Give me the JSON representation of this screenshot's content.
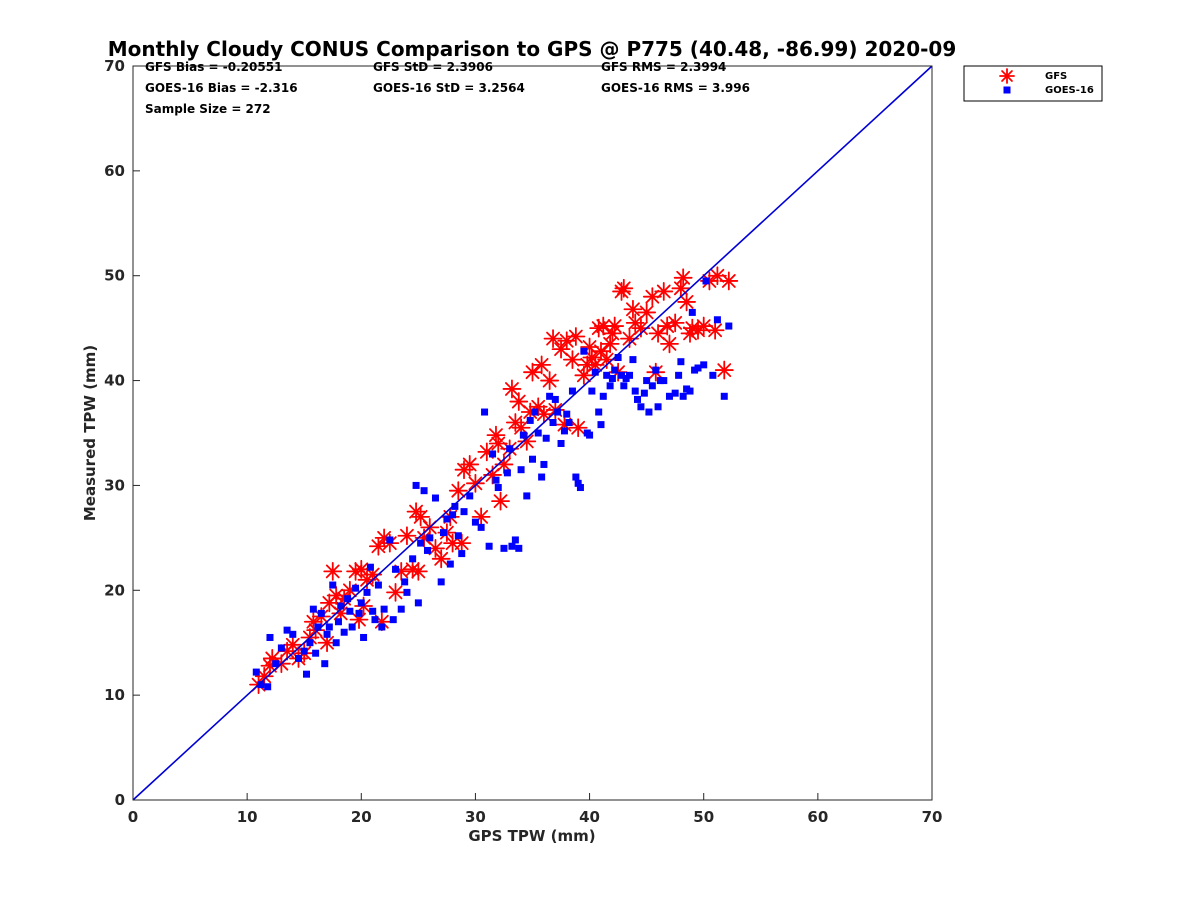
{
  "chart_data": {
    "type": "scatter",
    "title": "Monthly Cloudy CONUS Comparison to GPS @ P775 (40.48, -86.99) 2020-09",
    "xlabel": "GPS TPW (mm)",
    "ylabel": "Measured TPW (mm)",
    "xlim": [
      0,
      70
    ],
    "ylim": [
      0,
      70
    ],
    "xticks": [
      "0",
      "10",
      "20",
      "30",
      "40",
      "50",
      "60",
      "70"
    ],
    "yticks": [
      "0",
      "10",
      "20",
      "30",
      "40",
      "50",
      "60",
      "70"
    ],
    "grid": false,
    "legend_position": "top-right-outside",
    "reference_line": {
      "x": [
        0,
        70
      ],
      "y": [
        0,
        70
      ],
      "color": "#0000d6"
    },
    "stats": [
      "GFS Bias = -0.20551",
      "GFS StD = 2.3906",
      "GFS RMS = 2.3994",
      "GOES-16 Bias = -2.316",
      "GOES-16 StD = 3.2564",
      "GOES-16 RMS = 3.996",
      "Sample Size = 272"
    ],
    "series": [
      {
        "name": "GFS",
        "marker": "asterisk",
        "color": "#ff0000",
        "points": [
          [
            11.0,
            11.0
          ],
          [
            11.5,
            11.8
          ],
          [
            12.0,
            12.8
          ],
          [
            12.2,
            13.5
          ],
          [
            13.0,
            13.0
          ],
          [
            13.5,
            14.2
          ],
          [
            14.0,
            14.8
          ],
          [
            14.5,
            13.5
          ],
          [
            15.0,
            14.0
          ],
          [
            15.5,
            15.5
          ],
          [
            15.8,
            17.0
          ],
          [
            16.0,
            16.2
          ],
          [
            16.5,
            17.5
          ],
          [
            17.0,
            15.0
          ],
          [
            17.2,
            18.8
          ],
          [
            17.5,
            21.8
          ],
          [
            17.8,
            19.5
          ],
          [
            18.2,
            17.8
          ],
          [
            18.5,
            19.2
          ],
          [
            19.0,
            20.0
          ],
          [
            19.5,
            21.8
          ],
          [
            19.8,
            17.2
          ],
          [
            20.0,
            22.0
          ],
          [
            20.2,
            18.5
          ],
          [
            20.5,
            21.0
          ],
          [
            21.0,
            21.5
          ],
          [
            21.5,
            24.2
          ],
          [
            21.8,
            17.0
          ],
          [
            22.0,
            25.0
          ],
          [
            22.5,
            24.5
          ],
          [
            23.0,
            19.8
          ],
          [
            23.5,
            21.8
          ],
          [
            24.0,
            25.2
          ],
          [
            24.5,
            22.0
          ],
          [
            24.8,
            27.5
          ],
          [
            25.0,
            21.8
          ],
          [
            25.2,
            27.0
          ],
          [
            25.5,
            25.0
          ],
          [
            26.0,
            26.0
          ],
          [
            26.5,
            24.0
          ],
          [
            27.0,
            23.0
          ],
          [
            27.5,
            25.5
          ],
          [
            27.8,
            27.0
          ],
          [
            28.0,
            24.5
          ],
          [
            28.5,
            29.5
          ],
          [
            28.8,
            24.5
          ],
          [
            29.0,
            31.5
          ],
          [
            29.5,
            32.0
          ],
          [
            30.0,
            30.2
          ],
          [
            30.5,
            27.0
          ],
          [
            31.0,
            33.2
          ],
          [
            31.5,
            31.0
          ],
          [
            31.8,
            34.8
          ],
          [
            32.0,
            34.0
          ],
          [
            32.2,
            28.5
          ],
          [
            32.5,
            32.0
          ],
          [
            33.0,
            33.5
          ],
          [
            33.2,
            39.2
          ],
          [
            33.5,
            36.0
          ],
          [
            33.8,
            38.0
          ],
          [
            34.0,
            35.5
          ],
          [
            34.5,
            34.2
          ],
          [
            34.8,
            37.0
          ],
          [
            35.0,
            40.8
          ],
          [
            35.5,
            37.5
          ],
          [
            35.8,
            41.5
          ],
          [
            36.0,
            36.8
          ],
          [
            36.5,
            40.0
          ],
          [
            36.8,
            44.0
          ],
          [
            37.0,
            37.2
          ],
          [
            37.5,
            43.0
          ],
          [
            37.8,
            35.8
          ],
          [
            38.0,
            43.8
          ],
          [
            38.5,
            42.0
          ],
          [
            38.8,
            44.2
          ],
          [
            39.0,
            35.5
          ],
          [
            39.5,
            40.5
          ],
          [
            39.8,
            41.5
          ],
          [
            40.0,
            43.2
          ],
          [
            40.2,
            42.2
          ],
          [
            40.5,
            41.5
          ],
          [
            40.8,
            45.0
          ],
          [
            41.0,
            42.8
          ],
          [
            41.2,
            45.2
          ],
          [
            41.5,
            42.0
          ],
          [
            41.8,
            43.5
          ],
          [
            42.0,
            44.5
          ],
          [
            42.2,
            45.2
          ],
          [
            42.5,
            40.8
          ],
          [
            42.8,
            48.5
          ],
          [
            43.0,
            48.8
          ],
          [
            43.5,
            44.0
          ],
          [
            43.8,
            46.8
          ],
          [
            44.0,
            45.5
          ],
          [
            44.5,
            45.0
          ],
          [
            45.0,
            46.5
          ],
          [
            45.5,
            48.0
          ],
          [
            45.8,
            40.8
          ],
          [
            46.0,
            44.5
          ],
          [
            46.5,
            48.5
          ],
          [
            46.8,
            45.2
          ],
          [
            47.0,
            43.5
          ],
          [
            47.5,
            45.5
          ],
          [
            48.0,
            48.8
          ],
          [
            48.2,
            49.8
          ],
          [
            48.5,
            47.5
          ],
          [
            48.8,
            44.5
          ],
          [
            49.0,
            45.0
          ],
          [
            49.5,
            44.8
          ],
          [
            50.0,
            45.2
          ],
          [
            50.5,
            49.5
          ],
          [
            51.0,
            44.8
          ],
          [
            51.2,
            50.0
          ],
          [
            51.8,
            41.0
          ],
          [
            52.2,
            49.5
          ]
        ]
      },
      {
        "name": "GOES-16",
        "marker": "square",
        "color": "#0000ff",
        "points": [
          [
            10.8,
            12.2
          ],
          [
            11.2,
            11.0
          ],
          [
            11.8,
            10.8
          ],
          [
            12.0,
            15.5
          ],
          [
            12.5,
            13.0
          ],
          [
            13.0,
            14.5
          ],
          [
            13.5,
            16.2
          ],
          [
            14.0,
            15.8
          ],
          [
            14.5,
            13.5
          ],
          [
            15.0,
            14.2
          ],
          [
            15.2,
            12.0
          ],
          [
            15.5,
            15.0
          ],
          [
            15.8,
            18.2
          ],
          [
            16.0,
            14.0
          ],
          [
            16.2,
            16.5
          ],
          [
            16.5,
            17.8
          ],
          [
            16.8,
            13.0
          ],
          [
            17.0,
            15.8
          ],
          [
            17.2,
            16.5
          ],
          [
            17.5,
            20.5
          ],
          [
            17.8,
            15.0
          ],
          [
            18.0,
            17.0
          ],
          [
            18.2,
            18.5
          ],
          [
            18.5,
            16.0
          ],
          [
            18.8,
            19.2
          ],
          [
            19.0,
            18.0
          ],
          [
            19.2,
            16.5
          ],
          [
            19.5,
            20.2
          ],
          [
            19.8,
            17.8
          ],
          [
            20.0,
            18.8
          ],
          [
            20.2,
            15.5
          ],
          [
            20.5,
            19.8
          ],
          [
            20.8,
            22.2
          ],
          [
            21.0,
            18.0
          ],
          [
            21.2,
            17.2
          ],
          [
            21.5,
            20.5
          ],
          [
            21.8,
            16.5
          ],
          [
            22.0,
            18.2
          ],
          [
            22.5,
            24.8
          ],
          [
            22.8,
            17.2
          ],
          [
            23.0,
            22.0
          ],
          [
            23.5,
            18.2
          ],
          [
            23.8,
            20.8
          ],
          [
            24.0,
            19.8
          ],
          [
            24.5,
            23.0
          ],
          [
            24.8,
            30.0
          ],
          [
            25.0,
            18.8
          ],
          [
            25.2,
            24.5
          ],
          [
            25.5,
            29.5
          ],
          [
            25.8,
            23.8
          ],
          [
            26.0,
            25.0
          ],
          [
            26.5,
            28.8
          ],
          [
            27.0,
            20.8
          ],
          [
            27.2,
            25.5
          ],
          [
            27.5,
            26.8
          ],
          [
            27.8,
            22.5
          ],
          [
            28.0,
            27.2
          ],
          [
            28.2,
            28.0
          ],
          [
            28.5,
            25.2
          ],
          [
            28.8,
            23.5
          ],
          [
            29.0,
            27.5
          ],
          [
            29.5,
            29.0
          ],
          [
            30.0,
            26.5
          ],
          [
            30.5,
            26.0
          ],
          [
            30.8,
            37.0
          ],
          [
            31.2,
            24.2
          ],
          [
            31.5,
            33.0
          ],
          [
            31.8,
            30.5
          ],
          [
            32.0,
            29.8
          ],
          [
            32.5,
            24.0
          ],
          [
            32.8,
            31.2
          ],
          [
            33.0,
            33.5
          ],
          [
            33.2,
            24.2
          ],
          [
            33.5,
            24.8
          ],
          [
            33.8,
            24.0
          ],
          [
            34.0,
            31.5
          ],
          [
            34.2,
            34.8
          ],
          [
            34.5,
            29.0
          ],
          [
            34.8,
            36.2
          ],
          [
            35.0,
            32.5
          ],
          [
            35.2,
            37.0
          ],
          [
            35.5,
            35.0
          ],
          [
            35.8,
            30.8
          ],
          [
            36.0,
            32.0
          ],
          [
            36.2,
            34.5
          ],
          [
            36.5,
            38.5
          ],
          [
            36.8,
            36.0
          ],
          [
            37.0,
            38.2
          ],
          [
            37.2,
            37.0
          ],
          [
            37.5,
            34.0
          ],
          [
            37.8,
            35.2
          ],
          [
            38.0,
            36.8
          ],
          [
            38.2,
            36.0
          ],
          [
            38.5,
            39.0
          ],
          [
            38.8,
            30.8
          ],
          [
            39.0,
            30.2
          ],
          [
            39.2,
            29.8
          ],
          [
            39.5,
            42.8
          ],
          [
            39.8,
            35.0
          ],
          [
            40.0,
            34.8
          ],
          [
            40.2,
            39.0
          ],
          [
            40.5,
            40.8
          ],
          [
            40.8,
            37.0
          ],
          [
            41.0,
            35.8
          ],
          [
            41.2,
            38.5
          ],
          [
            41.5,
            40.5
          ],
          [
            41.8,
            39.5
          ],
          [
            42.0,
            40.2
          ],
          [
            42.2,
            41.0
          ],
          [
            42.5,
            42.2
          ],
          [
            42.8,
            40.5
          ],
          [
            43.0,
            39.5
          ],
          [
            43.2,
            40.2
          ],
          [
            43.5,
            40.5
          ],
          [
            43.8,
            42.0
          ],
          [
            44.0,
            39.0
          ],
          [
            44.2,
            38.2
          ],
          [
            44.5,
            37.5
          ],
          [
            44.8,
            38.8
          ],
          [
            45.0,
            40.0
          ],
          [
            45.2,
            37.0
          ],
          [
            45.5,
            39.5
          ],
          [
            45.8,
            41.0
          ],
          [
            46.0,
            37.5
          ],
          [
            46.2,
            40.0
          ],
          [
            46.5,
            40.0
          ],
          [
            47.0,
            38.5
          ],
          [
            47.5,
            38.8
          ],
          [
            47.8,
            40.5
          ],
          [
            48.0,
            41.8
          ],
          [
            48.2,
            38.5
          ],
          [
            48.5,
            39.2
          ],
          [
            48.8,
            39.0
          ],
          [
            49.0,
            46.5
          ],
          [
            49.2,
            41.0
          ],
          [
            49.5,
            41.2
          ],
          [
            50.0,
            41.5
          ],
          [
            50.2,
            49.5
          ],
          [
            50.8,
            40.5
          ],
          [
            51.2,
            45.8
          ],
          [
            51.8,
            38.5
          ],
          [
            52.2,
            45.2
          ]
        ]
      }
    ]
  }
}
